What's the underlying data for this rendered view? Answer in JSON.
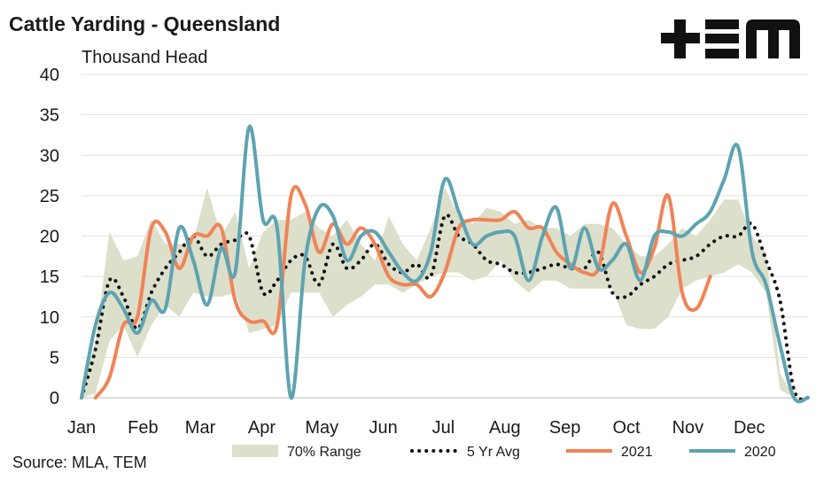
{
  "chart_data": {
    "type": "line",
    "title": "Cattle Yarding - Queensland",
    "ylabel": "Thousand Head",
    "source": "Source: MLA, TEM",
    "ylim": [
      0,
      40
    ],
    "yticks": [
      0,
      5,
      10,
      15,
      20,
      25,
      30,
      35,
      40
    ],
    "xlim": [
      0,
      52
    ],
    "xticks": [
      {
        "label": "Jan",
        "week": 0
      },
      {
        "label": "Feb",
        "week": 4.4
      },
      {
        "label": "Mar",
        "week": 8.5
      },
      {
        "label": "Apr",
        "week": 12.9
      },
      {
        "label": "May",
        "week": 17.2
      },
      {
        "label": "Jun",
        "week": 21.6
      },
      {
        "label": "Jul",
        "week": 25.9
      },
      {
        "label": "Aug",
        "week": 30.3
      },
      {
        "label": "Sep",
        "week": 34.6
      },
      {
        "label": "Oct",
        "week": 39
      },
      {
        "label": "Nov",
        "week": 43.4
      },
      {
        "label": "Dec",
        "week": 47.8
      }
    ],
    "grid": true,
    "legend_position": "bottom",
    "weeks": [
      0,
      1,
      2,
      3,
      4,
      5,
      6,
      7,
      8,
      9,
      10,
      11,
      12,
      13,
      14,
      15,
      16,
      17,
      18,
      19,
      20,
      21,
      22,
      23,
      24,
      25,
      26,
      27,
      28,
      29,
      30,
      31,
      32,
      33,
      34,
      35,
      36,
      37,
      38,
      39,
      40,
      41,
      42,
      43,
      44,
      45,
      46,
      47,
      48,
      49,
      50,
      51,
      52
    ],
    "range_band": {
      "name": "70% Range",
      "color": "#dcdfca",
      "upper": [
        1,
        7,
        20.5,
        17,
        17.5,
        22,
        19,
        19,
        19.5,
        26,
        20,
        23,
        16,
        20.5,
        22,
        22,
        23,
        21,
        20,
        22,
        19,
        17,
        22.5,
        19,
        17,
        21,
        26,
        22.5,
        21.5,
        23.5,
        23,
        21.5,
        22,
        21,
        21,
        20,
        21.5,
        21.5,
        21,
        19,
        17.5,
        17.5,
        19,
        21,
        20,
        22,
        24.5,
        24.5,
        20,
        18,
        3,
        0,
        0
      ],
      "lower": [
        0,
        0.5,
        7,
        9,
        5,
        9,
        11.5,
        10,
        13,
        12.5,
        12.5,
        13,
        8,
        8.5,
        9,
        13,
        13,
        13,
        10,
        11.5,
        12.5,
        14,
        14,
        13,
        14,
        15,
        15.5,
        15.5,
        14.5,
        15,
        17,
        14.5,
        13,
        14.5,
        14.5,
        13.5,
        13.5,
        13.5,
        13.5,
        9,
        8.5,
        8.5,
        10,
        13.5,
        14.5,
        15,
        15.5,
        16.5,
        15.5,
        13,
        1,
        0,
        0
      ]
    },
    "series": [
      {
        "name": "5 Yr Avg",
        "color": "#111111",
        "style": "dotted",
        "values": [
          0,
          6,
          14.5,
          12.5,
          8.5,
          13,
          16,
          18,
          20,
          17.5,
          19,
          19.5,
          20,
          13,
          14.5,
          17,
          17.5,
          14,
          19,
          16,
          17,
          19,
          16.5,
          15.5,
          16.5,
          15,
          22.5,
          20,
          19,
          17,
          16.5,
          15.5,
          15.5,
          16,
          16.5,
          16,
          16,
          18,
          13,
          12.5,
          14,
          15,
          16.5,
          17,
          17.5,
          19,
          20,
          20,
          21.5,
          17,
          12,
          1,
          0
        ]
      },
      {
        "name": "2021",
        "color": "#f08357",
        "style": "solid",
        "values": [
          null,
          0,
          2.5,
          9,
          10,
          21,
          20.5,
          16,
          20,
          20,
          21,
          12,
          9.5,
          9.5,
          9,
          25,
          24,
          18,
          21.5,
          19,
          21,
          19,
          15,
          14,
          14,
          12.5,
          15.5,
          21,
          22,
          22,
          22,
          23,
          21,
          21,
          18,
          16.5,
          15.5,
          16,
          24,
          20,
          15.5,
          18.5,
          25,
          13,
          11,
          15,
          null,
          null,
          null,
          null,
          null,
          null,
          null
        ]
      },
      {
        "name": "2020",
        "color": "#5ea3b1",
        "style": "solid",
        "values": [
          0,
          9,
          13,
          11,
          8,
          12,
          11,
          21,
          17,
          11.5,
          18.5,
          15.5,
          33.5,
          22,
          21,
          0,
          17,
          23.5,
          22.5,
          17,
          20,
          20.5,
          18,
          15.5,
          14.5,
          18,
          27,
          23,
          19,
          20,
          20.5,
          20,
          14.5,
          20,
          23.5,
          16,
          21,
          16,
          17,
          19,
          14.5,
          20,
          20.5,
          20,
          21.5,
          23,
          27,
          31,
          18,
          14,
          6.5,
          0,
          0
        ]
      }
    ]
  }
}
